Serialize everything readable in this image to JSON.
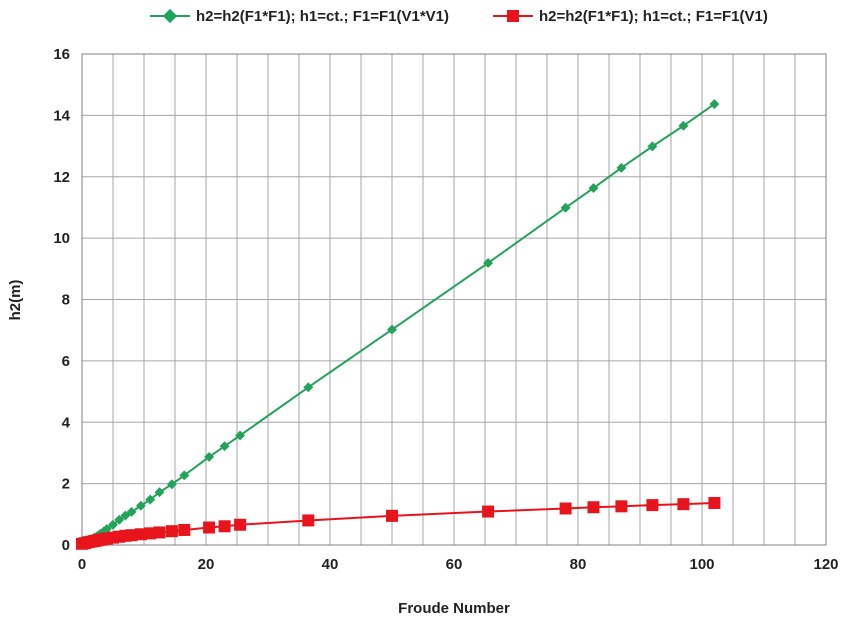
{
  "chart_data": {
    "type": "line",
    "xlabel": "Froude Number",
    "ylabel": "h2(m)",
    "xlim": [
      0,
      120
    ],
    "ylim": [
      0,
      16
    ],
    "x_ticks": [
      0,
      20,
      40,
      60,
      80,
      100,
      120
    ],
    "y_ticks": [
      0,
      2,
      4,
      6,
      8,
      10,
      12,
      14,
      16
    ],
    "x_minor_step": 5,
    "grid": true,
    "legend_position": "top",
    "series": [
      {
        "name": "h2=h2(F1*F1); h1=ct.; F1=F1(V1*V1)",
        "color": "#22a35a",
        "marker": "diamond",
        "x": [
          0,
          0.5,
          1,
          1.5,
          2,
          2.5,
          3,
          3.5,
          4,
          5,
          6,
          7,
          8,
          9.5,
          11,
          12.5,
          14.5,
          16.5,
          20.5,
          23,
          25.5,
          36.5,
          50,
          65.5,
          78,
          82.5,
          87,
          92,
          97,
          102
        ],
        "y": [
          0.05,
          0.09,
          0.13,
          0.18,
          0.24,
          0.3,
          0.37,
          0.44,
          0.52,
          0.66,
          0.82,
          0.96,
          1.08,
          1.28,
          1.48,
          1.72,
          1.98,
          2.27,
          2.87,
          3.22,
          3.57,
          5.14,
          7.02,
          9.19,
          10.99,
          11.63,
          12.29,
          12.99,
          13.66,
          14.37
        ]
      },
      {
        "name": "h2=h2(F1*F1); h1=ct.; F1=F1(V1)",
        "color": "#e8141c",
        "marker": "square",
        "x": [
          0,
          0.5,
          1,
          1.5,
          2,
          2.5,
          3,
          3.5,
          4,
          5,
          6,
          7,
          8,
          9.5,
          11,
          12.5,
          14.5,
          16.5,
          20.5,
          23,
          25.5,
          36.5,
          50,
          65.5,
          78,
          82.5,
          87,
          92,
          97,
          102
        ],
        "y": [
          0.04,
          0.06,
          0.09,
          0.11,
          0.13,
          0.15,
          0.17,
          0.19,
          0.21,
          0.24,
          0.27,
          0.3,
          0.32,
          0.35,
          0.38,
          0.41,
          0.45,
          0.49,
          0.57,
          0.61,
          0.66,
          0.8,
          0.95,
          1.09,
          1.19,
          1.23,
          1.26,
          1.3,
          1.33,
          1.37
        ]
      }
    ]
  }
}
